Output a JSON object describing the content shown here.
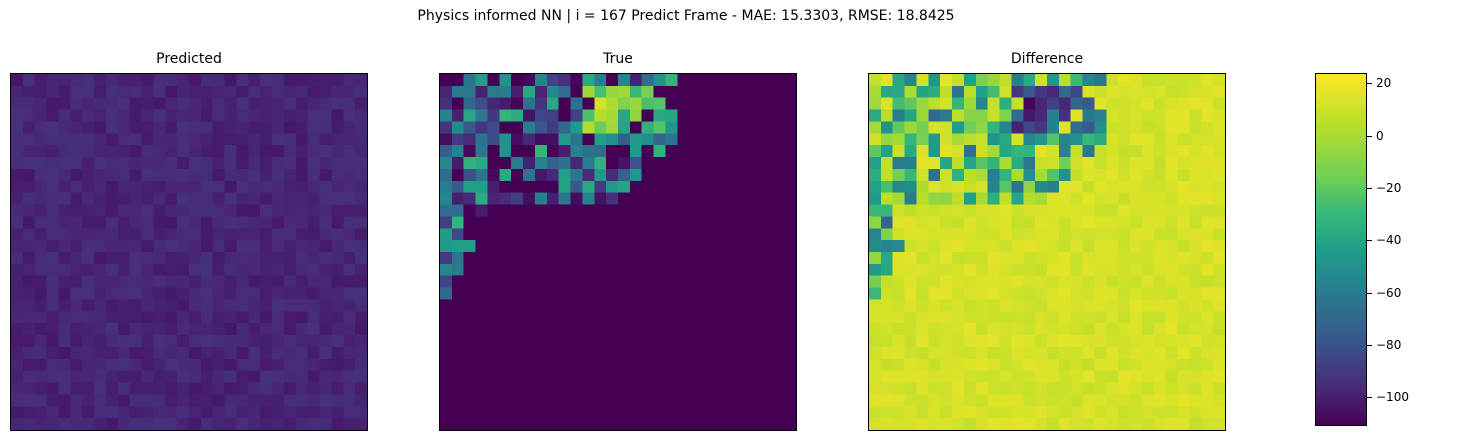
{
  "chart_data": {
    "type": "heatmap",
    "title": "Physics informed NN | i = 167 Predict Frame - MAE: 15.3303, RMSE: 18.8425",
    "panels": [
      {
        "title": "Predicted"
      },
      {
        "title": "True"
      },
      {
        "title": "Difference"
      }
    ],
    "grid_size": [
      30,
      30
    ],
    "colormap": "viridis",
    "colorbar": {
      "range": [
        -111,
        24
      ],
      "ticks": [
        "20",
        "0",
        "−20",
        "−40",
        "−60",
        "−80",
        "−100"
      ],
      "tick_values": [
        20,
        0,
        -20,
        -40,
        -60,
        -80,
        -100
      ]
    },
    "axes_ticks": "none"
  }
}
